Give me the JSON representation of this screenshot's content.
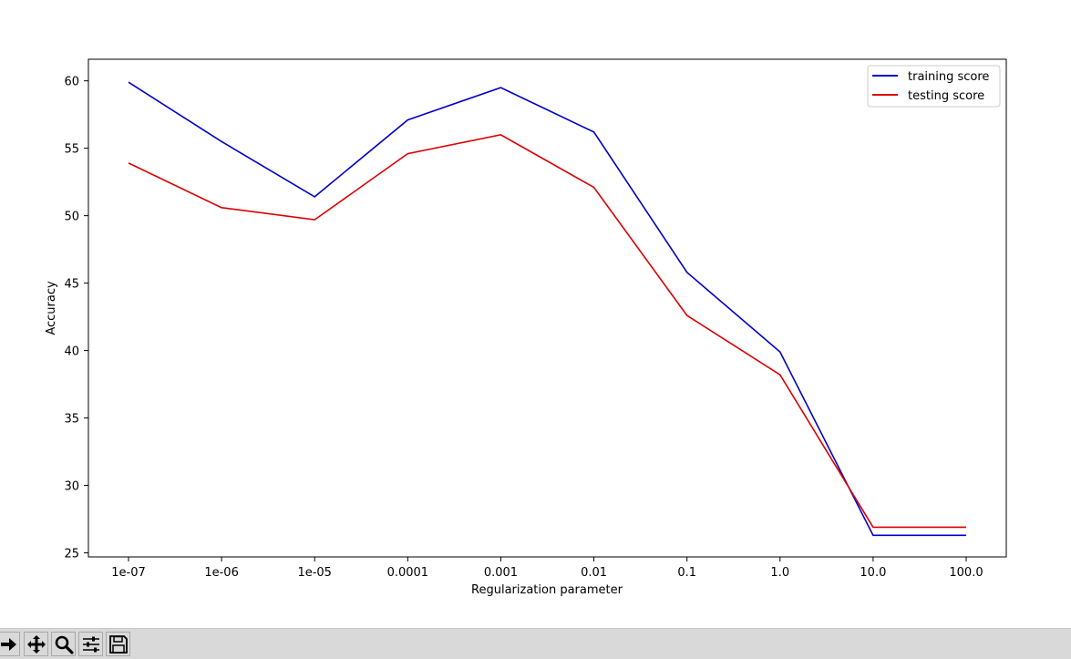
{
  "chart_data": {
    "type": "line",
    "title": "",
    "xlabel": "Regularization parameter",
    "ylabel": "Accuracy",
    "categories": [
      "1e-07",
      "1e-06",
      "1e-05",
      "0.0001",
      "0.001",
      "0.01",
      "0.1",
      "1.0",
      "10.0",
      "100.0"
    ],
    "yticks": [
      "25",
      "30",
      "35",
      "40",
      "45",
      "50",
      "55",
      "60"
    ],
    "ylim": [
      24.7,
      61.6
    ],
    "grid": false,
    "legend_position": "top-right",
    "series": [
      {
        "name": "training score",
        "color": "#0000cc",
        "values": [
          59.9,
          55.5,
          51.4,
          57.1,
          59.5,
          56.2,
          45.8,
          39.9,
          26.3,
          26.3
        ]
      },
      {
        "name": "testing score",
        "color": "#dd0000",
        "values": [
          53.9,
          50.6,
          49.7,
          54.6,
          56.0,
          52.1,
          42.6,
          38.2,
          26.9,
          26.9
        ]
      }
    ]
  },
  "toolbar": {
    "tools": [
      {
        "name": "forward",
        "icon": "arrow-right-icon"
      },
      {
        "name": "pan",
        "icon": "move-icon"
      },
      {
        "name": "zoom",
        "icon": "magnifier-icon"
      },
      {
        "name": "configure",
        "icon": "sliders-icon"
      },
      {
        "name": "save",
        "icon": "floppy-disk-icon"
      }
    ]
  }
}
